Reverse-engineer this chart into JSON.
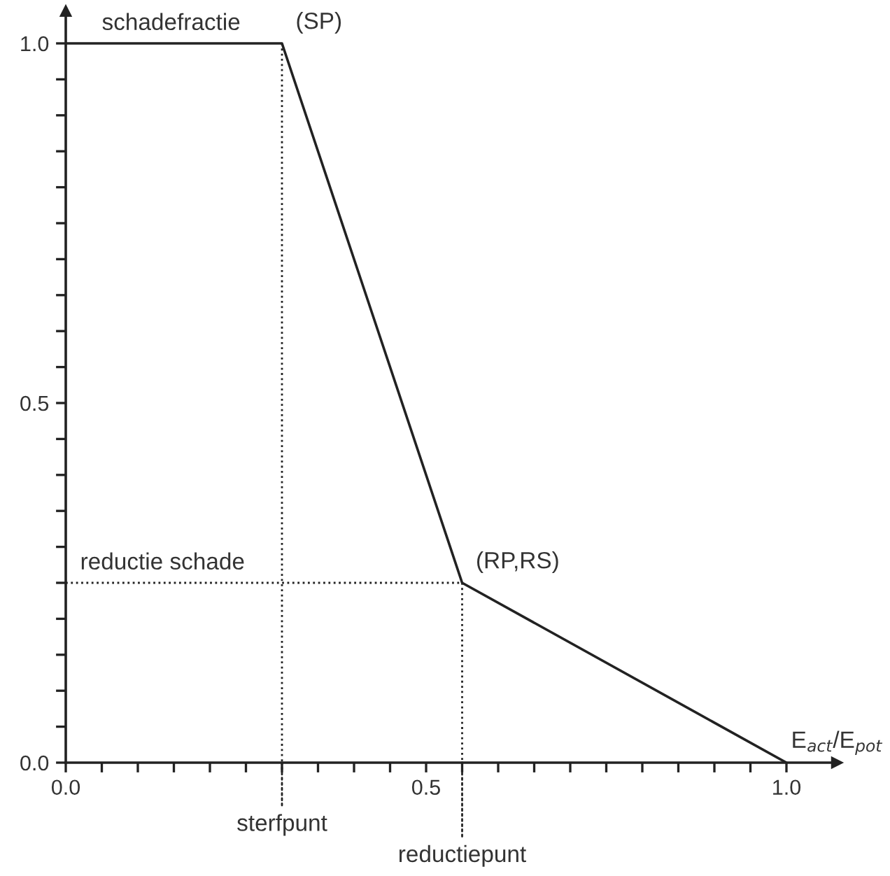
{
  "chart_data": {
    "type": "line",
    "xlabel": "E$_{act}$/E$_{pot}$",
    "ylabel": "schadefractie",
    "x": [
      0,
      0.3,
      0.55,
      1.0
    ],
    "series": [
      {
        "color": "#222222",
        "values": [
          1.0,
          1.0,
          0.25,
          0.0
        ]
      }
    ],
    "xlim": [
      0,
      1.07
    ],
    "ylim": [
      0,
      1.045
    ],
    "xticks": [
      {
        "value": 0,
        "label": "0.0"
      },
      {
        "value": 0.05,
        "label": null
      },
      {
        "value": 0.1,
        "label": null
      },
      {
        "value": 0.15,
        "label": null
      },
      {
        "value": 0.2,
        "label": null
      },
      {
        "value": 0.25,
        "label": null
      },
      {
        "value": 0.3,
        "label": null
      },
      {
        "value": 0.35,
        "label": null
      },
      {
        "value": 0.4,
        "label": null
      },
      {
        "value": 0.45,
        "label": null
      },
      0.5,
      {
        "value": 0.55,
        "label": null
      },
      {
        "value": 0.6,
        "label": null
      },
      {
        "value": 0.65,
        "label": null
      },
      {
        "value": 0.7,
        "label": null
      },
      {
        "value": 0.75,
        "label": null
      },
      {
        "value": 0.8,
        "label": null
      },
      {
        "value": 0.85,
        "label": null
      },
      {
        "value": 0.9,
        "label": null
      },
      {
        "value": 0.95,
        "label": null
      },
      {
        "value": 1.0,
        "label": "1.0"
      }
    ],
    "yticks": [
      {
        "value": 0,
        "label": "0.0"
      },
      {
        "value": 0.05,
        "label": null
      },
      {
        "value": 0.1,
        "label": null
      },
      {
        "value": 0.15,
        "label": null
      },
      {
        "value": 0.2,
        "label": null
      },
      {
        "value": 0.25,
        "label": null
      },
      {
        "value": 0.3,
        "label": null
      },
      {
        "value": 0.35,
        "label": null
      },
      {
        "value": 0.4,
        "label": null
      },
      {
        "value": 0.45,
        "label": null
      },
      0.5,
      {
        "value": 0.55,
        "label": null
      },
      {
        "value": 0.6,
        "label": null
      },
      {
        "value": 0.65,
        "label": null
      },
      {
        "value": 0.7,
        "label": null
      },
      {
        "value": 0.75,
        "label": null
      },
      {
        "value": 0.8,
        "label": null
      },
      {
        "value": 0.85,
        "label": null
      },
      {
        "value": 0.9,
        "label": null
      },
      {
        "value": 0.95,
        "label": null
      },
      {
        "value": 1.0,
        "label": "1.0"
      }
    ],
    "ref_lines": [
      {
        "axis": "x",
        "value": 0.3,
        "label": "sterfpunt",
        "line_style": "dotted"
      },
      {
        "axis": "x",
        "value": 0.55,
        "label": "reductiepunt",
        "line_style": "dotted"
      },
      {
        "axis": "y",
        "value": 0.25,
        "label": "reductie schade",
        "line_style": "dotted"
      }
    ],
    "annotations": [
      {
        "text": "(SP)",
        "x": 0.3,
        "y": 1.0
      },
      {
        "text": "(RP,RS)",
        "x": 0.55,
        "y": 0.25
      }
    ],
    "grid": false,
    "marker": "none",
    "line_style": "solid"
  }
}
